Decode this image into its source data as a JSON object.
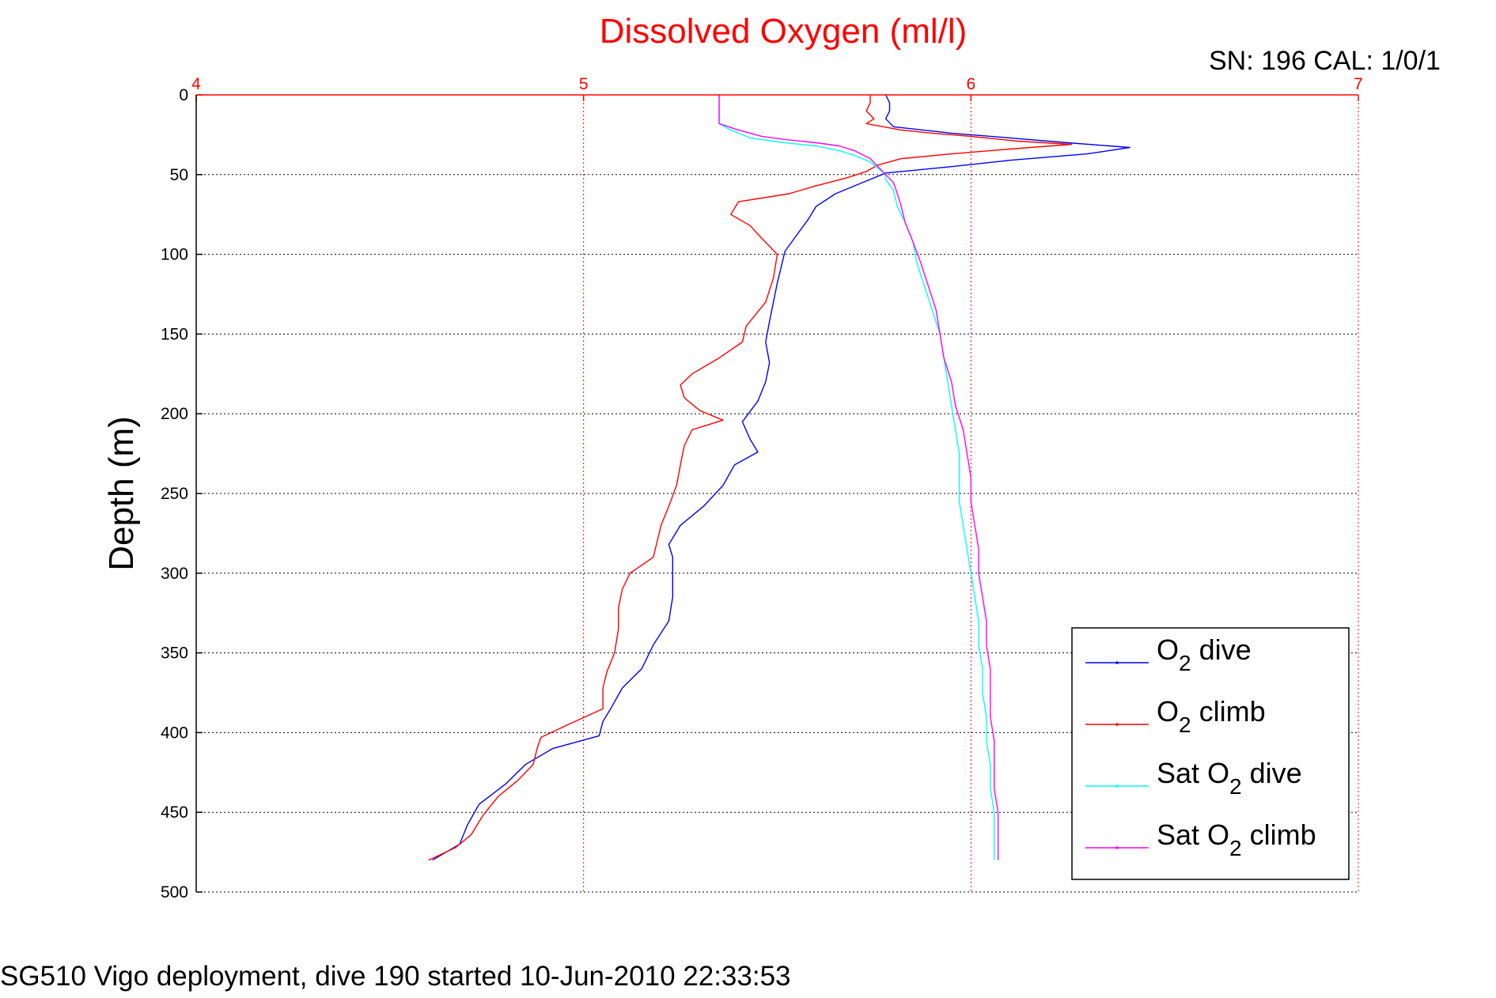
{
  "chart_data": {
    "type": "line",
    "title": "Dissolved Oxygen (ml/l)",
    "xlabel": "Dissolved Oxygen (ml/l)",
    "ylabel": "Depth (m)",
    "xlim": [
      4,
      7
    ],
    "ylim": [
      0,
      500
    ],
    "y_reversed": true,
    "x_axis_position": "top",
    "x_ticks": [
      "4",
      "5",
      "6",
      "7"
    ],
    "y_ticks": [
      "0",
      "50",
      "100",
      "150",
      "200",
      "250",
      "300",
      "350",
      "400",
      "450",
      "500"
    ],
    "grid": true,
    "legend_position": "bottom-right",
    "annotation_top_right": "SN: 196  CAL: 1/0/1",
    "caption": "SG510 Vigo deployment, dive 190 started 10-Jun-2010 22:33:53",
    "series": [
      {
        "name": "O2 dive",
        "legend_main": "O",
        "legend_sub": "2",
        "legend_rest": " dive",
        "color": "#0000ff",
        "points": [
          [
            5.78,
            0
          ],
          [
            5.79,
            5
          ],
          [
            5.79,
            10
          ],
          [
            5.78,
            15
          ],
          [
            5.8,
            20
          ],
          [
            5.95,
            24
          ],
          [
            6.1,
            27
          ],
          [
            6.25,
            30
          ],
          [
            6.41,
            33
          ],
          [
            6.3,
            37
          ],
          [
            6.1,
            41
          ],
          [
            5.95,
            45
          ],
          [
            5.78,
            49
          ],
          [
            5.72,
            55
          ],
          [
            5.65,
            62
          ],
          [
            5.6,
            70
          ],
          [
            5.58,
            78
          ],
          [
            5.55,
            88
          ],
          [
            5.52,
            98
          ],
          [
            5.51,
            108
          ],
          [
            5.5,
            118
          ],
          [
            5.49,
            130
          ],
          [
            5.48,
            142
          ],
          [
            5.47,
            155
          ],
          [
            5.48,
            168
          ],
          [
            5.47,
            180
          ],
          [
            5.45,
            192
          ],
          [
            5.41,
            205
          ],
          [
            5.43,
            216
          ],
          [
            5.45,
            224
          ],
          [
            5.39,
            232
          ],
          [
            5.36,
            245
          ],
          [
            5.31,
            258
          ],
          [
            5.25,
            270
          ],
          [
            5.22,
            282
          ],
          [
            5.23,
            290
          ],
          [
            5.23,
            300
          ],
          [
            5.23,
            315
          ],
          [
            5.22,
            330
          ],
          [
            5.18,
            345
          ],
          [
            5.15,
            360
          ],
          [
            5.1,
            372
          ],
          [
            5.07,
            385
          ],
          [
            5.05,
            393
          ],
          [
            5.04,
            402
          ],
          [
            4.92,
            410
          ],
          [
            4.85,
            420
          ],
          [
            4.8,
            432
          ],
          [
            4.73,
            445
          ],
          [
            4.7,
            458
          ],
          [
            4.68,
            470
          ],
          [
            4.61,
            480
          ]
        ]
      },
      {
        "name": "O2 climb",
        "legend_main": "O",
        "legend_sub": "2",
        "legend_rest": " climb",
        "color": "#ff0000",
        "points": [
          [
            5.74,
            0
          ],
          [
            5.74,
            5
          ],
          [
            5.73,
            10
          ],
          [
            5.75,
            15
          ],
          [
            5.73,
            18
          ],
          [
            5.82,
            22
          ],
          [
            5.9,
            24
          ],
          [
            6.0,
            26
          ],
          [
            6.12,
            29
          ],
          [
            6.26,
            31
          ],
          [
            6.1,
            34
          ],
          [
            5.95,
            37
          ],
          [
            5.82,
            40
          ],
          [
            5.76,
            44
          ],
          [
            5.73,
            48
          ],
          [
            5.68,
            52
          ],
          [
            5.6,
            57
          ],
          [
            5.53,
            62
          ],
          [
            5.4,
            67
          ],
          [
            5.38,
            75
          ],
          [
            5.43,
            82
          ],
          [
            5.46,
            90
          ],
          [
            5.5,
            100
          ],
          [
            5.49,
            115
          ],
          [
            5.47,
            130
          ],
          [
            5.42,
            145
          ],
          [
            5.41,
            155
          ],
          [
            5.35,
            165
          ],
          [
            5.28,
            175
          ],
          [
            5.25,
            182
          ],
          [
            5.26,
            190
          ],
          [
            5.3,
            198
          ],
          [
            5.36,
            204
          ],
          [
            5.28,
            210
          ],
          [
            5.26,
            220
          ],
          [
            5.25,
            232
          ],
          [
            5.24,
            245
          ],
          [
            5.22,
            258
          ],
          [
            5.2,
            270
          ],
          [
            5.19,
            280
          ],
          [
            5.18,
            290
          ],
          [
            5.12,
            300
          ],
          [
            5.1,
            310
          ],
          [
            5.09,
            322
          ],
          [
            5.09,
            335
          ],
          [
            5.08,
            350
          ],
          [
            5.06,
            362
          ],
          [
            5.05,
            372
          ],
          [
            5.05,
            385
          ],
          [
            4.96,
            395
          ],
          [
            4.89,
            403
          ],
          [
            4.88,
            410
          ],
          [
            4.87,
            420
          ],
          [
            4.83,
            430
          ],
          [
            4.78,
            440
          ],
          [
            4.74,
            452
          ],
          [
            4.71,
            464
          ],
          [
            4.67,
            472
          ],
          [
            4.6,
            480
          ]
        ]
      },
      {
        "name": "Sat O2 dive",
        "legend_main": "Sat O",
        "legend_sub": "2",
        "legend_rest": " dive",
        "color": "#00ffff",
        "points": [
          [
            5.35,
            0
          ],
          [
            5.35,
            10
          ],
          [
            5.35,
            18
          ],
          [
            5.38,
            22
          ],
          [
            5.43,
            27
          ],
          [
            5.52,
            30
          ],
          [
            5.6,
            32
          ],
          [
            5.66,
            35
          ],
          [
            5.7,
            38
          ],
          [
            5.74,
            42
          ],
          [
            5.76,
            46
          ],
          [
            5.78,
            50
          ],
          [
            5.78,
            53
          ],
          [
            5.8,
            60
          ],
          [
            5.81,
            70
          ],
          [
            5.83,
            80
          ],
          [
            5.85,
            92
          ],
          [
            5.86,
            105
          ],
          [
            5.88,
            120
          ],
          [
            5.9,
            135
          ],
          [
            5.92,
            150
          ],
          [
            5.93,
            165
          ],
          [
            5.94,
            180
          ],
          [
            5.95,
            195
          ],
          [
            5.96,
            210
          ],
          [
            5.97,
            225
          ],
          [
            5.97,
            240
          ],
          [
            5.97,
            255
          ],
          [
            5.98,
            270
          ],
          [
            5.99,
            285
          ],
          [
            6.0,
            300
          ],
          [
            6.01,
            315
          ],
          [
            6.02,
            330
          ],
          [
            6.02,
            345
          ],
          [
            6.03,
            360
          ],
          [
            6.03,
            375
          ],
          [
            6.04,
            390
          ],
          [
            6.04,
            405
          ],
          [
            6.05,
            420
          ],
          [
            6.05,
            435
          ],
          [
            6.06,
            450
          ],
          [
            6.06,
            465
          ],
          [
            6.06,
            480
          ]
        ]
      },
      {
        "name": "Sat O2 climb",
        "legend_main": "Sat O",
        "legend_sub": "2",
        "legend_rest": " climb",
        "color": "#ff00ff",
        "points": [
          [
            5.35,
            0
          ],
          [
            5.35,
            10
          ],
          [
            5.35,
            18
          ],
          [
            5.4,
            22
          ],
          [
            5.46,
            26
          ],
          [
            5.52,
            28
          ],
          [
            5.6,
            30
          ],
          [
            5.66,
            32
          ],
          [
            5.7,
            35
          ],
          [
            5.74,
            40
          ],
          [
            5.76,
            45
          ],
          [
            5.78,
            50
          ],
          [
            5.8,
            55
          ],
          [
            5.81,
            62
          ],
          [
            5.82,
            70
          ],
          [
            5.83,
            80
          ],
          [
            5.85,
            92
          ],
          [
            5.87,
            105
          ],
          [
            5.89,
            120
          ],
          [
            5.91,
            135
          ],
          [
            5.92,
            150
          ],
          [
            5.93,
            165
          ],
          [
            5.95,
            180
          ],
          [
            5.96,
            195
          ],
          [
            5.98,
            210
          ],
          [
            5.99,
            225
          ],
          [
            6.0,
            240
          ],
          [
            6.0,
            255
          ],
          [
            6.01,
            270
          ],
          [
            6.02,
            285
          ],
          [
            6.02,
            300
          ],
          [
            6.03,
            315
          ],
          [
            6.04,
            330
          ],
          [
            6.04,
            345
          ],
          [
            6.05,
            360
          ],
          [
            6.05,
            375
          ],
          [
            6.05,
            390
          ],
          [
            6.06,
            405
          ],
          [
            6.06,
            420
          ],
          [
            6.06,
            435
          ],
          [
            6.07,
            450
          ],
          [
            6.07,
            465
          ],
          [
            6.07,
            480
          ]
        ]
      }
    ]
  }
}
